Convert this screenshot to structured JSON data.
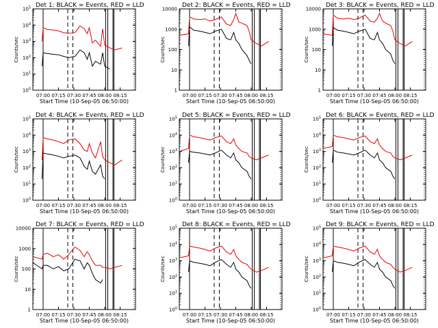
{
  "figure": {
    "x_tick_labels": [
      "07:00",
      "07:15",
      "07:30",
      "07:45",
      "08:00",
      "08:15"
    ],
    "x_label": "Start Time (10-Sep-05 06:50:00)",
    "y_label": "Counts/sec",
    "series_colors": {
      "events": "#000000",
      "lld": "#e00000"
    }
  },
  "chart_data": [
    {
      "type": "line",
      "title": "Det 1: BLACK = Events, RED = LLD",
      "yscale": "log",
      "ylim": [
        1,
        100000
      ],
      "y_tick_labels": [
        "10^0",
        "10^1",
        "10^2",
        "10^3",
        "10^4",
        "10^5"
      ],
      "x_minutes": [
        9,
        10,
        14,
        20,
        25,
        30,
        35,
        41,
        46,
        50,
        53,
        55,
        58,
        61,
        66,
        68,
        70,
        75,
        80,
        87
      ],
      "series": [
        {
          "color": "#000000",
          "values": [
            30,
            200,
            180,
            160,
            150,
            120,
            100,
            120,
            300,
            200,
            80,
            200,
            30,
            60,
            40,
            200,
            30,
            20,
            null,
            null
          ]
        },
        {
          "color": "#e00000",
          "values": [
            1000,
            7000,
            5500,
            5000,
            4500,
            3500,
            3200,
            3500,
            9000,
            6000,
            3000,
            7000,
            800,
            1200,
            500,
            6000,
            600,
            400,
            300,
            400
          ]
        }
      ]
    },
    {
      "type": "line",
      "title": "Det 2: BLACK = Events, RED = LLD",
      "yscale": "log",
      "ylim": [
        1,
        10000
      ],
      "y_tick_labels": [
        "1",
        "10",
        "100",
        "1000",
        "10000"
      ],
      "x_minutes": [
        0,
        9,
        10,
        14,
        20,
        25,
        30,
        35,
        41,
        46,
        50,
        53,
        55,
        58,
        61,
        66,
        68,
        70,
        75,
        80,
        87
      ],
      "series": [
        {
          "color": "#000000",
          "values": [
            null,
            150,
            1300,
            900,
            800,
            700,
            600,
            800,
            1000,
            350,
            300,
            700,
            300,
            200,
            100,
            50,
            30,
            20,
            null,
            null,
            null
          ]
        },
        {
          "color": "#e00000",
          "values": [
            500,
            600,
            4000,
            3200,
            3000,
            3200,
            2500,
            3000,
            4000,
            1800,
            1500,
            3000,
            6000,
            2200,
            2000,
            1500,
            800,
            300,
            200,
            150,
            250
          ]
        }
      ]
    },
    {
      "type": "line",
      "title": "Det 3: BLACK = Events, RED = LLD",
      "yscale": "log",
      "ylim": [
        1,
        10000
      ],
      "y_tick_labels": [
        "1",
        "10",
        "100",
        "1000",
        "10000"
      ],
      "x_minutes": [
        0,
        9,
        10,
        14,
        20,
        25,
        30,
        35,
        41,
        46,
        50,
        53,
        55,
        58,
        61,
        66,
        68,
        70,
        75,
        80,
        87
      ],
      "series": [
        {
          "color": "#000000",
          "values": [
            null,
            150,
            1200,
            900,
            800,
            700,
            600,
            800,
            1000,
            350,
            300,
            700,
            300,
            200,
            100,
            60,
            30,
            20,
            null,
            null,
            null
          ]
        },
        {
          "color": "#e00000",
          "values": [
            600,
            500,
            5000,
            3500,
            3200,
            3500,
            3000,
            3500,
            5000,
            2500,
            2200,
            3500,
            6000,
            2500,
            2000,
            1500,
            800,
            300,
            200,
            150,
            250
          ]
        }
      ]
    },
    {
      "type": "line",
      "title": "Det 4: BLACK = Events, RED = LLD",
      "yscale": "log",
      "ylim": [
        1,
        100000
      ],
      "y_tick_labels": [
        "10^0",
        "10^1",
        "10^2",
        "10^3",
        "10^4",
        "10^5"
      ],
      "x_minutes": [
        9,
        10,
        14,
        20,
        25,
        30,
        35,
        41,
        46,
        50,
        53,
        55,
        58,
        61,
        66,
        68,
        70,
        75,
        80,
        87
      ],
      "series": [
        {
          "color": "#000000",
          "values": [
            20,
            800,
            700,
            600,
            500,
            400,
            500,
            600,
            400,
            120,
            80,
            250,
            60,
            40,
            150,
            30,
            20,
            null,
            null,
            null
          ]
        },
        {
          "color": "#e00000",
          "values": [
            300,
            7000,
            6000,
            5000,
            4000,
            3000,
            5000,
            6000,
            3000,
            1200,
            1000,
            3000,
            800,
            400,
            4000,
            500,
            300,
            200,
            150,
            300
          ]
        }
      ]
    },
    {
      "type": "line",
      "title": "Det 5: BLACK = Events, RED = LLD",
      "yscale": "log",
      "ylim": [
        1,
        100000
      ],
      "y_tick_labels": [
        "10^0",
        "10^1",
        "10^2",
        "10^3",
        "10^4",
        "10^5"
      ],
      "x_minutes": [
        0,
        9,
        10,
        14,
        20,
        25,
        30,
        35,
        41,
        46,
        50,
        53,
        55,
        58,
        61,
        66,
        68,
        70,
        75,
        80,
        87
      ],
      "series": [
        {
          "color": "#000000",
          "values": [
            null,
            200,
            1000,
            900,
            800,
            700,
            600,
            800,
            1200,
            600,
            400,
            800,
            300,
            200,
            100,
            60,
            30,
            20,
            null,
            null,
            null
          ]
        },
        {
          "color": "#e00000",
          "values": [
            1000,
            1500,
            10000,
            8000,
            7000,
            6000,
            5000,
            7000,
            9000,
            4000,
            3000,
            6000,
            2500,
            1500,
            1000,
            800,
            500,
            400,
            300,
            400,
            600
          ]
        }
      ]
    },
    {
      "type": "line",
      "title": "Det 6: BLACK = Events, RED = LLD",
      "yscale": "log",
      "ylim": [
        1,
        100000
      ],
      "y_tick_labels": [
        "10^0",
        "10^1",
        "10^2",
        "10^3",
        "10^4",
        "10^5"
      ],
      "x_minutes": [
        0,
        9,
        10,
        14,
        20,
        25,
        30,
        35,
        41,
        46,
        50,
        53,
        55,
        58,
        61,
        66,
        68,
        70,
        75,
        80,
        87
      ],
      "series": [
        {
          "color": "#000000",
          "values": [
            null,
            200,
            1200,
            900,
            800,
            700,
            600,
            800,
            1200,
            600,
            400,
            800,
            300,
            200,
            100,
            60,
            30,
            20,
            null,
            null,
            null
          ]
        },
        {
          "color": "#e00000",
          "values": [
            1500,
            2000,
            10000,
            8000,
            7000,
            6000,
            5000,
            7000,
            9000,
            4000,
            3000,
            6000,
            2500,
            1500,
            1000,
            800,
            500,
            400,
            300,
            400,
            600
          ]
        }
      ]
    },
    {
      "type": "line",
      "title": "Det 7: BLACK = Events, RED = LLD",
      "yscale": "log",
      "ylim": [
        1,
        10000
      ],
      "y_tick_labels": [
        "1",
        "10",
        "100",
        "1000",
        "10000"
      ],
      "x_minutes": [
        0,
        9,
        10,
        14,
        20,
        25,
        30,
        35,
        41,
        46,
        50,
        53,
        55,
        58,
        61,
        66,
        68,
        70,
        75,
        80,
        87
      ],
      "series": [
        {
          "color": "#000000",
          "values": [
            200,
            100,
            150,
            150,
            100,
            130,
            80,
            100,
            300,
            250,
            100,
            200,
            150,
            60,
            30,
            20,
            30,
            null,
            null,
            null,
            null
          ]
        },
        {
          "color": "#e00000",
          "values": [
            400,
            300,
            500,
            600,
            400,
            500,
            300,
            500,
            1200,
            800,
            400,
            700,
            500,
            250,
            150,
            150,
            120,
            120,
            100,
            120,
            150
          ]
        }
      ]
    },
    {
      "type": "line",
      "title": "Det 8: BLACK = Events, RED = LLD",
      "yscale": "log",
      "ylim": [
        1,
        100000
      ],
      "y_tick_labels": [
        "10^0",
        "10^1",
        "10^2",
        "10^3",
        "10^4",
        "10^5"
      ],
      "x_minutes": [
        0,
        9,
        10,
        14,
        20,
        25,
        30,
        35,
        41,
        46,
        50,
        53,
        55,
        58,
        61,
        66,
        68,
        70,
        75,
        80,
        87
      ],
      "series": [
        {
          "color": "#000000",
          "values": [
            null,
            200,
            1000,
            800,
            700,
            600,
            500,
            800,
            1200,
            600,
            400,
            800,
            300,
            200,
            100,
            60,
            30,
            20,
            null,
            null,
            null
          ]
        },
        {
          "color": "#e00000",
          "values": [
            1500,
            2000,
            8000,
            7000,
            6000,
            5000,
            4000,
            6000,
            8000,
            3500,
            2500,
            5000,
            2000,
            1200,
            800,
            600,
            400,
            300,
            200,
            250,
            400
          ]
        }
      ]
    },
    {
      "type": "line",
      "title": "Det 9: BLACK = Events, RED = LLD",
      "yscale": "log",
      "ylim": [
        1,
        100000
      ],
      "y_tick_labels": [
        "10^0",
        "10^1",
        "10^2",
        "10^3",
        "10^4",
        "10^5"
      ],
      "x_minutes": [
        0,
        9,
        10,
        14,
        20,
        25,
        30,
        35,
        41,
        46,
        50,
        53,
        55,
        58,
        61,
        66,
        68,
        70,
        75,
        80,
        87
      ],
      "series": [
        {
          "color": "#000000",
          "values": [
            null,
            200,
            1000,
            800,
            700,
            600,
            500,
            800,
            1200,
            600,
            400,
            800,
            300,
            200,
            100,
            60,
            30,
            20,
            null,
            null,
            null
          ]
        },
        {
          "color": "#e00000",
          "values": [
            1500,
            2000,
            8000,
            7000,
            6000,
            5000,
            4000,
            6000,
            8000,
            3500,
            2500,
            5000,
            2000,
            1200,
            800,
            600,
            400,
            300,
            200,
            250,
            400
          ]
        }
      ]
    }
  ]
}
